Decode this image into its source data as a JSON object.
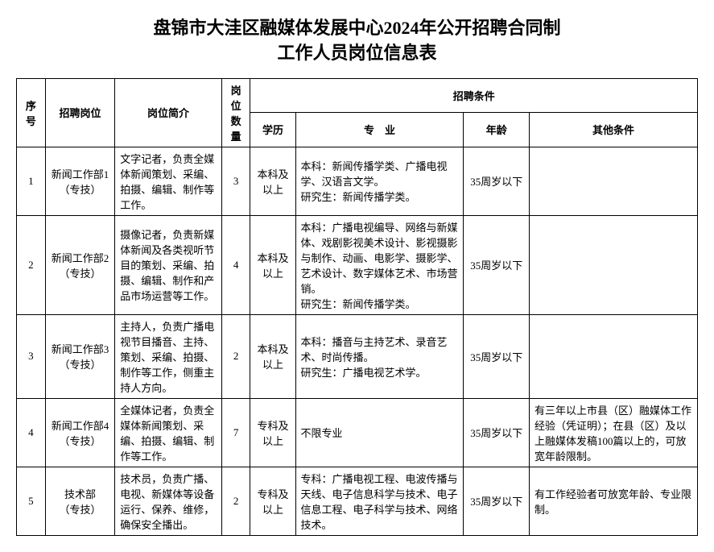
{
  "title_line1": "盘锦市大洼区融媒体发展中心2024年公开招聘合同制",
  "title_line2": "工作人员岗位信息表",
  "headers": {
    "seq": "序号",
    "position": "招聘岗位",
    "desc": "岗位简介",
    "count": "岗位数量",
    "conditions": "招聘条件",
    "education": "学历",
    "major": "专　业",
    "age": "年龄",
    "other": "其他条件"
  },
  "rows": [
    {
      "seq": "1",
      "position": "新闻工作部1\n（专技）",
      "desc": "文字记者，负责全媒体新闻策划、采编、拍摄、编辑、制作等工作。",
      "count": "3",
      "education": "本科及以上",
      "major": "本科：新闻传播学类、广播电视学、汉语言文学。\n研究生：新闻传播学类。",
      "age": "35周岁以下",
      "other": ""
    },
    {
      "seq": "2",
      "position": "新闻工作部2\n（专技）",
      "desc": "摄像记者，负责新媒体新闻及各类视听节目的策划、采编、拍摄、编辑、制作和产品市场运营等工作。",
      "count": "4",
      "education": "本科及以上",
      "major": "本科：广播电视编导、网络与新媒体、戏剧影视美术设计、影视摄影与制作、动画、电影学、摄影学、艺术设计、数字媒体艺术、市场营销。\n研究生：新闻传播学类。",
      "age": "35周岁以下",
      "other": ""
    },
    {
      "seq": "3",
      "position": "新闻工作部3\n（专技）",
      "desc": "主持人，负责广播电视节目播音、主持、策划、采编、拍摄、制作等工作，侧重主持人方向。",
      "count": "2",
      "education": "本科及以上",
      "major": "本科：播音与主持艺术、录音艺术、时尚传播。\n研究生：广播电视艺术学。",
      "age": "35周岁以下",
      "other": ""
    },
    {
      "seq": "4",
      "position": "新闻工作部4\n（专技）",
      "desc": "全媒体记者，负责全媒体新闻策划、采编、拍摄、编辑、制作等工作。",
      "count": "7",
      "education": "专科及以上",
      "major": "不限专业",
      "age": "35周岁以下",
      "other": "有三年以上市县（区）融媒体工作经验（凭证明）；在县（区）及以上融媒体发稿100篇以上的，可放宽年龄限制。"
    },
    {
      "seq": "5",
      "position": "技术部\n（专技）",
      "desc": "技术员，负责广播、电视、新媒体等设备运行、保养、维修，确保安全播出。",
      "count": "2",
      "education": "专科及以上",
      "major": "专科：广播电视工程、电波传播与天线、电子信息科学与技术、电子信息工程、电子科学与技术、网络技术。",
      "age": "35周岁以下",
      "other": "有工作经验者可放宽年龄、专业限制。"
    }
  ],
  "styles": {
    "background_color": "#ffffff",
    "text_color": "#000000",
    "border_color": "#000000",
    "title_fontsize": 22,
    "cell_fontsize": 13,
    "font_family": "SimSun"
  }
}
